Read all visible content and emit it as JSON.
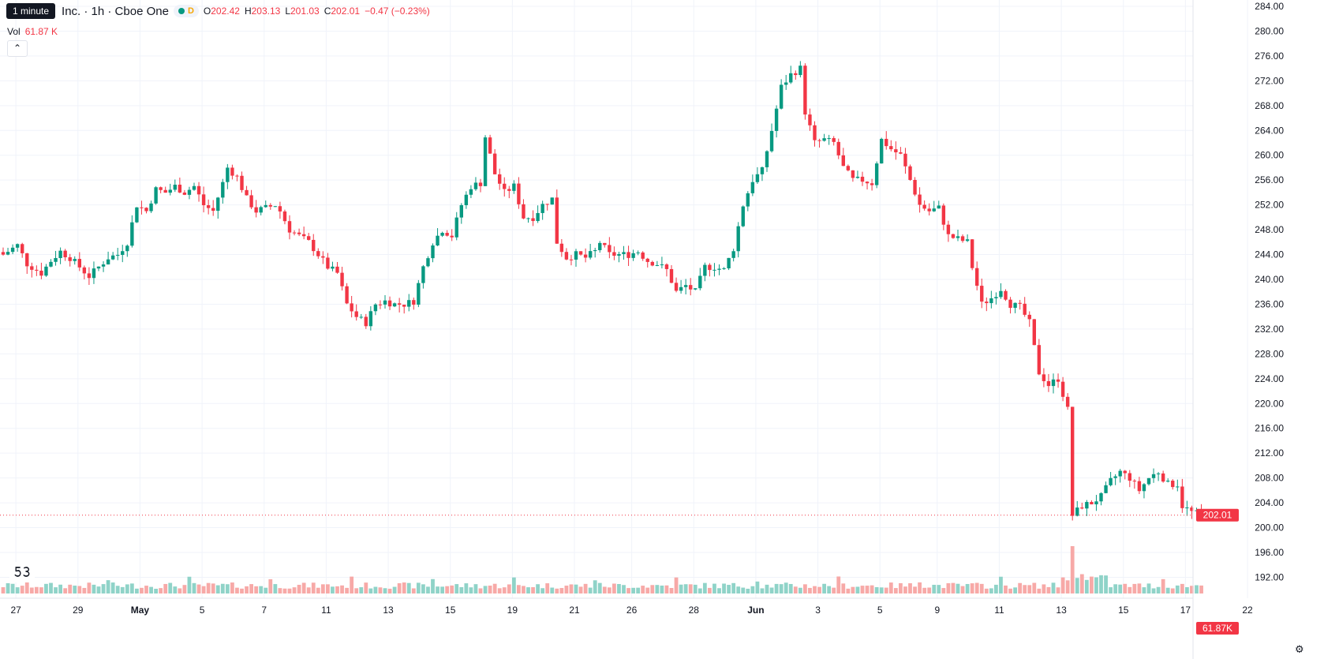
{
  "legend": {
    "tooltip": "1 minute",
    "title": "Inc. · 1h · Cboe One",
    "market_flag": "D",
    "open_label": "O",
    "open": "202.42",
    "high_label": "H",
    "high": "203.13",
    "low_label": "L",
    "low": "201.03",
    "close_label": "C",
    "close": "202.01",
    "change": "−0.47 (−0.23%)"
  },
  "volume": {
    "label": "Vol",
    "value": "61.87 K"
  },
  "collapse_icon": "chevron-up-icon",
  "logo_icon": "tradingview-logo-icon",
  "settings_icon": "gear-icon",
  "colors": {
    "up": "#089981",
    "down": "#f23645",
    "vol_up": "#8fd3c8",
    "vol_down": "#f7a9a7",
    "grid": "#f0f3fa"
  },
  "chart_data": {
    "type": "candlestick",
    "interval": "1h",
    "ylim": [
      188,
      286
    ],
    "y_ticks": [
      "284.00",
      "280.00",
      "276.00",
      "272.00",
      "268.00",
      "264.00",
      "260.00",
      "256.00",
      "252.00",
      "248.00",
      "244.00",
      "240.00",
      "236.00",
      "232.00",
      "228.00",
      "224.00",
      "220.00",
      "216.00",
      "212.00",
      "208.00",
      "204.00",
      "200.00",
      "196.00",
      "192.00"
    ],
    "x_ticks": [
      "27",
      "29",
      "May",
      "5",
      "7",
      "11",
      "13",
      "15",
      "19",
      "21",
      "26",
      "28",
      "Jun",
      "3",
      "5",
      "9",
      "11",
      "13",
      "15",
      "17",
      "22"
    ],
    "last_price_label": "202.01",
    "last_price": 202.01,
    "last_volume_label": "61.87K",
    "anchors": [
      [
        0,
        244
      ],
      [
        3,
        245.5
      ],
      [
        5,
        242.5
      ],
      [
        8,
        241
      ],
      [
        10,
        243
      ],
      [
        12,
        244.5
      ],
      [
        14,
        243.5
      ],
      [
        16,
        242
      ],
      [
        18,
        240.5
      ],
      [
        20,
        242
      ],
      [
        22,
        243.5
      ],
      [
        24,
        244
      ],
      [
        26,
        246
      ],
      [
        28,
        252
      ],
      [
        30,
        251
      ],
      [
        32,
        254.5
      ],
      [
        34,
        254
      ],
      [
        36,
        255
      ],
      [
        38,
        254
      ],
      [
        40,
        255
      ],
      [
        42,
        252
      ],
      [
        44,
        251
      ],
      [
        46,
        255.5
      ],
      [
        47,
        258
      ],
      [
        49,
        256.5
      ],
      [
        51,
        253
      ],
      [
        53,
        251
      ],
      [
        55,
        251.5
      ],
      [
        57,
        252
      ],
      [
        58,
        251
      ],
      [
        60,
        248
      ],
      [
        62,
        247
      ],
      [
        64,
        246
      ],
      [
        66,
        244
      ],
      [
        68,
        242
      ],
      [
        70,
        241
      ],
      [
        72,
        236
      ],
      [
        74,
        234
      ],
      [
        76,
        233
      ],
      [
        78,
        236
      ],
      [
        80,
        236.5
      ],
      [
        82,
        236
      ],
      [
        84,
        236
      ],
      [
        86,
        236.5
      ],
      [
        88,
        242
      ],
      [
        90,
        246
      ],
      [
        92,
        248
      ],
      [
        94,
        247
      ],
      [
        96,
        252
      ],
      [
        98,
        255
      ],
      [
        100,
        255.5
      ],
      [
        101,
        263
      ],
      [
        103,
        257
      ],
      [
        105,
        254
      ],
      [
        107,
        255
      ],
      [
        109,
        250
      ],
      [
        111,
        250
      ],
      [
        113,
        252
      ],
      [
        115,
        253
      ],
      [
        116,
        246
      ],
      [
        118,
        243.5
      ],
      [
        120,
        244
      ],
      [
        122,
        243.5
      ],
      [
        124,
        244.5
      ],
      [
        125,
        246
      ],
      [
        127,
        244
      ],
      [
        129,
        244
      ],
      [
        131,
        244
      ],
      [
        133,
        244.5
      ],
      [
        135,
        243
      ],
      [
        137,
        242.5
      ],
      [
        139,
        241.5
      ],
      [
        141,
        238
      ],
      [
        143,
        239
      ],
      [
        145,
        238
      ],
      [
        147,
        242
      ],
      [
        149,
        242
      ],
      [
        151,
        241.5
      ],
      [
        153,
        245
      ],
      [
        155,
        252
      ],
      [
        157,
        256
      ],
      [
        159,
        257.5
      ],
      [
        161,
        264
      ],
      [
        163,
        271
      ],
      [
        165,
        273
      ],
      [
        167,
        274
      ],
      [
        168,
        267
      ],
      [
        170,
        262
      ],
      [
        172,
        262.5
      ],
      [
        174,
        262
      ],
      [
        176,
        258
      ],
      [
        178,
        256
      ],
      [
        180,
        256
      ],
      [
        182,
        255.5
      ],
      [
        184,
        262.5
      ],
      [
        186,
        261
      ],
      [
        188,
        260
      ],
      [
        190,
        256
      ],
      [
        192,
        252
      ],
      [
        194,
        251
      ],
      [
        196,
        251.5
      ],
      [
        198,
        247
      ],
      [
        200,
        246.5
      ],
      [
        202,
        246
      ],
      [
        203,
        242
      ],
      [
        205,
        236
      ],
      [
        207,
        237
      ],
      [
        209,
        238.5
      ],
      [
        211,
        236
      ],
      [
        213,
        235.5
      ],
      [
        215,
        233
      ],
      [
        217,
        225
      ],
      [
        219,
        223
      ],
      [
        221,
        224
      ],
      [
        223,
        219
      ],
      [
        224,
        202
      ],
      [
        226,
        203.5
      ],
      [
        228,
        204
      ],
      [
        230,
        205
      ],
      [
        232,
        207.5
      ],
      [
        234,
        209
      ],
      [
        236,
        208
      ],
      [
        238,
        206
      ],
      [
        240,
        208
      ],
      [
        242,
        209
      ],
      [
        244,
        207
      ],
      [
        246,
        207
      ],
      [
        247,
        203.5
      ],
      [
        249,
        202.5
      ],
      [
        251,
        202
      ]
    ]
  }
}
